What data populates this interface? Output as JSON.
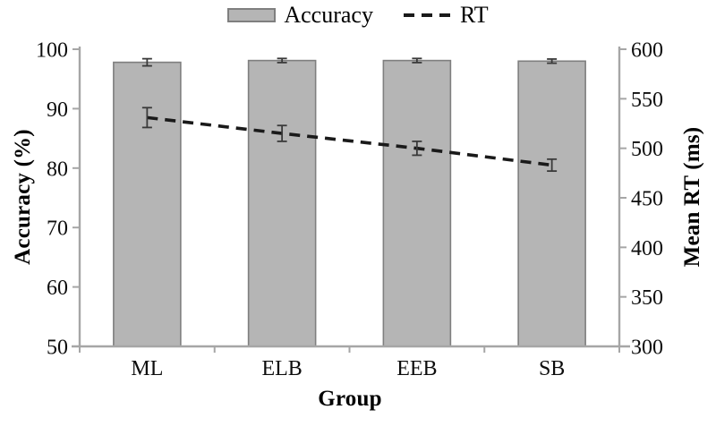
{
  "chart_data": {
    "type": "bar",
    "subtype": "bar-line-combo",
    "categories": [
      "ML",
      "ELB",
      "EEB",
      "SB"
    ],
    "series": [
      {
        "name": "Accuracy",
        "type": "bar",
        "axis": "left",
        "values": [
          97.8,
          98.1,
          98.1,
          98.0
        ],
        "errors": [
          0.6,
          0.35,
          0.35,
          0.35
        ]
      },
      {
        "name": "RT",
        "type": "line",
        "line_style": "dashed",
        "axis": "right",
        "values": [
          531,
          515,
          500,
          483
        ],
        "errors": [
          10,
          8,
          7,
          6
        ]
      }
    ],
    "left_axis": {
      "label": "Accuracy (%)",
      "min": 50,
      "max": 100,
      "step": 10,
      "ticks": [
        50,
        60,
        70,
        80,
        90,
        100
      ]
    },
    "right_axis": {
      "label": "Mean RT (ms)",
      "min": 300,
      "max": 600,
      "step": 50,
      "ticks": [
        300,
        350,
        400,
        450,
        500,
        550,
        600
      ]
    },
    "x_axis": {
      "label": "Group"
    },
    "legend": {
      "position": "top",
      "entries": [
        "Accuracy",
        "RT"
      ]
    },
    "grid": false,
    "colors": {
      "bar_fill": "#b5b5b5",
      "bar_border": "#7f7f7f",
      "line": "#1a1a1a",
      "axis": "#a6a6a6",
      "error_bar": "#3a3a3a",
      "text": "#0d0d0d"
    }
  }
}
